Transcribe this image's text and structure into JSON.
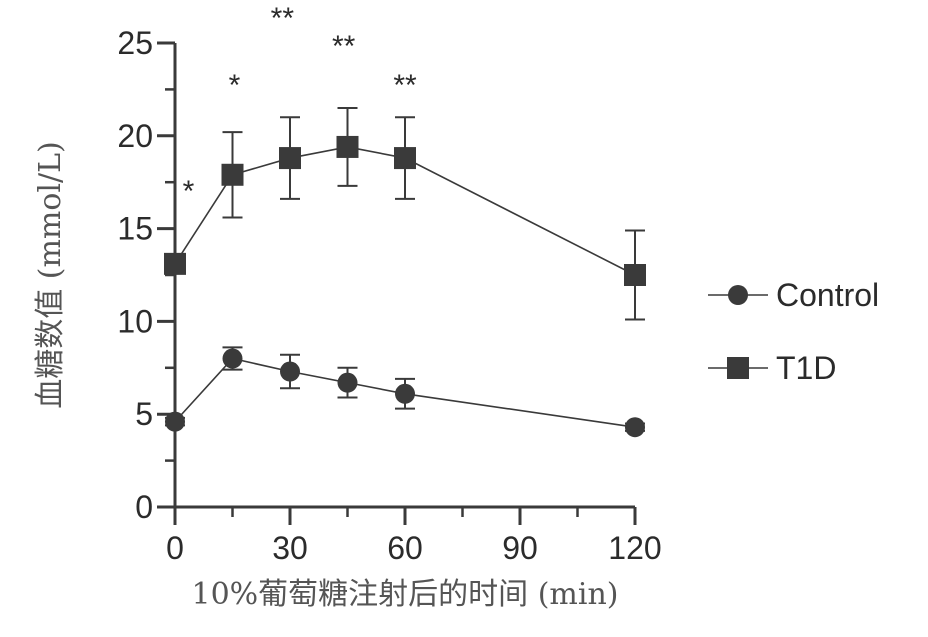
{
  "chart_data": {
    "type": "line",
    "xlabel": "10%葡萄糖注射后的时间 (min)",
    "ylabel": "血糖数值 (mmol/L)",
    "xlim": [
      0,
      120
    ],
    "ylim": [
      0,
      25
    ],
    "x_ticks": [
      0,
      30,
      60,
      90,
      120
    ],
    "y_ticks": [
      0,
      5,
      10,
      15,
      20,
      25
    ],
    "x_tick_labels": [
      "0",
      "30",
      "60",
      "90",
      "120"
    ],
    "y_tick_labels": [
      "0",
      "5",
      "10",
      "15",
      "20",
      "25"
    ],
    "grid": false,
    "legend_position": "right",
    "series": [
      {
        "name": "Control",
        "marker": "circle",
        "color": "#3a3a3a",
        "x": [
          0,
          15,
          30,
          45,
          60,
          120
        ],
        "y": [
          4.6,
          8.0,
          7.3,
          6.7,
          6.1,
          4.3
        ],
        "err": [
          0.2,
          0.6,
          0.9,
          0.8,
          0.8,
          0.2
        ]
      },
      {
        "name": "T1D",
        "marker": "square",
        "color": "#3a3a3a",
        "x": [
          0,
          15,
          30,
          45,
          60,
          120
        ],
        "y": [
          13.1,
          17.9,
          18.8,
          19.4,
          18.8,
          12.5
        ],
        "err": [
          0.3,
          2.3,
          2.2,
          2.1,
          2.2,
          2.4
        ]
      }
    ],
    "annotations": [
      {
        "x": 3.5,
        "y": 16.5,
        "text": "*"
      },
      {
        "x": 15.5,
        "y": 22.2,
        "text": "*"
      },
      {
        "x": 28,
        "y": 25.8,
        "text": "**"
      },
      {
        "x": 44,
        "y": 24.3,
        "text": "**"
      },
      {
        "x": 60,
        "y": 22.2,
        "text": "**"
      }
    ]
  }
}
